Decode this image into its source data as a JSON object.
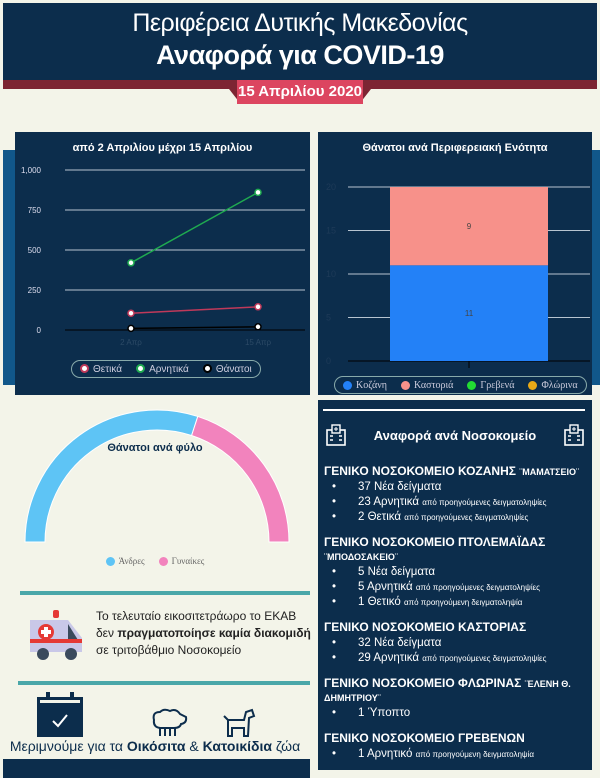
{
  "header": {
    "region": "Περιφέρεια Δυτικής Μακεδονίας",
    "title": "Αναφορά για COVID-19",
    "date": "15 Απριλίου 2020"
  },
  "colors": {
    "navy": "#0c2d4c",
    "accent": "#dc4560",
    "teal": "#4aa7a9"
  },
  "chart_data": [
    {
      "type": "line",
      "title": "από 2 Απριλίου μέχρι 15 Απριλίου",
      "categories": [
        "2 Απρ",
        "15 Απρ"
      ],
      "ylim": [
        0,
        1000
      ],
      "yticks": [
        "0",
        "250",
        "500",
        "750",
        "1,000"
      ],
      "grid": true,
      "legend": "bottom",
      "series": [
        {
          "name": "Θετικά",
          "values": [
            105,
            145
          ],
          "color": "#c0395a"
        },
        {
          "name": "Αρνητικά",
          "values": [
            420,
            860
          ],
          "color": "#1faa50"
        },
        {
          "name": "Θάνατοι",
          "values": [
            10,
            20
          ],
          "color": "#000000"
        }
      ]
    },
    {
      "type": "bar",
      "stacked": true,
      "title": "Θάνατοι ανά Περιφερειακή Ενότητα",
      "categories": [
        ""
      ],
      "ylim": [
        0,
        20
      ],
      "yticks": [
        "0",
        "5",
        "10",
        "15",
        "20"
      ],
      "grid": true,
      "legend": "bottom",
      "series": [
        {
          "name": "Κοζάνη",
          "values": [
            11
          ],
          "color": "#2381f7"
        },
        {
          "name": "Καστοριά",
          "values": [
            9
          ],
          "color": "#f7918a"
        },
        {
          "name": "Γρεβενά",
          "values": [
            0
          ],
          "color": "#22dd33"
        },
        {
          "name": "Φλώρινα",
          "values": [
            0
          ],
          "color": "#e8a917"
        }
      ]
    },
    {
      "type": "pie",
      "subtype": "half-donut",
      "title": "Θάνατοι ανά φύλο",
      "legend": "bottom",
      "series": [
        {
          "name": "Άνδρες",
          "fraction": 0.6,
          "color": "#5ec4f5"
        },
        {
          "name": "Γυναίκες",
          "fraction": 0.4,
          "color": "#f283bd"
        }
      ]
    }
  ],
  "ekab": {
    "pre": "Το τελευταίο εικοσιτετράωρο το ΕΚΑΒ",
    "mid_a": "δεν ",
    "mid_b": "πραγματοποίησε καμία διακομιδή",
    "post": "σε τριτοβάθμιο Νοσοκομείο"
  },
  "animals": {
    "a": "Μεριμνούμε για τα ",
    "b": "Οικόσιτα",
    "c": " & ",
    "d": "Κατοικίδια",
    "e": " ζώα"
  },
  "hospitals": {
    "title": "Αναφορά ανά Νοσοκομείο",
    "list": [
      {
        "name": "ΓΕΝΙΚΟ ΝΟΣΟΚΟΜΕΙΟ ΚΟΖΑΝΗΣ",
        "sub": "¨ΜΑΜΑΤΣΕΙΟ¨",
        "items": [
          {
            "main": "37 Νέα δείγματα",
            "note": ""
          },
          {
            "main": "23 Αρνητικά",
            "note": "από προηγούμενες δειγματοληψίες"
          },
          {
            "main": "2 Θετικά",
            "note": "από προηγούμενες δειγματοληψίες"
          }
        ]
      },
      {
        "name": "ΓΕΝΙΚΟ ΝΟΣΟΚΟΜΕΙΟ ΠΤΟΛΕΜΑΪΔΑΣ",
        "sub": "¨ΜΠΟΔΟΣΑΚΕΙΟ¨",
        "items": [
          {
            "main": "5 Νέα δείγματα",
            "note": ""
          },
          {
            "main": "5 Αρνητικά",
            "note": "από προηγούμενες δειγματοληψίες"
          },
          {
            "main": "1 Θετικό",
            "note": "από προηγούμενη δειγματοληψία"
          }
        ]
      },
      {
        "name": "ΓΕΝΙΚΟ ΝΟΣΟΚΟΜΕΙΟ ΚΑΣΤΟΡΙΑΣ",
        "sub": "",
        "items": [
          {
            "main": "32 Νέα δείγματα",
            "note": ""
          },
          {
            "main": "29 Αρνητικά",
            "note": "από προηγούμενες δειγματοληψίες"
          }
        ]
      },
      {
        "name": "ΓΕΝΙΚΟ ΝΟΣΟΚΟΜΕΙΟ ΦΛΩΡΙΝΑΣ",
        "sub": "¨ΕΛΕΝΗ Θ. ΔΗΜΗΤΡΙΟΥ¨",
        "items": [
          {
            "main": "1 Ύποπτο",
            "note": ""
          }
        ]
      },
      {
        "name": "ΓΕΝΙΚΟ ΝΟΣΟΚΟΜΕΙΟ ΓΡΕΒΕΝΩΝ",
        "sub": "",
        "items": [
          {
            "main": "1 Αρνητικό",
            "note": "από προηγούμενη δειγματοληψία"
          }
        ]
      }
    ]
  }
}
